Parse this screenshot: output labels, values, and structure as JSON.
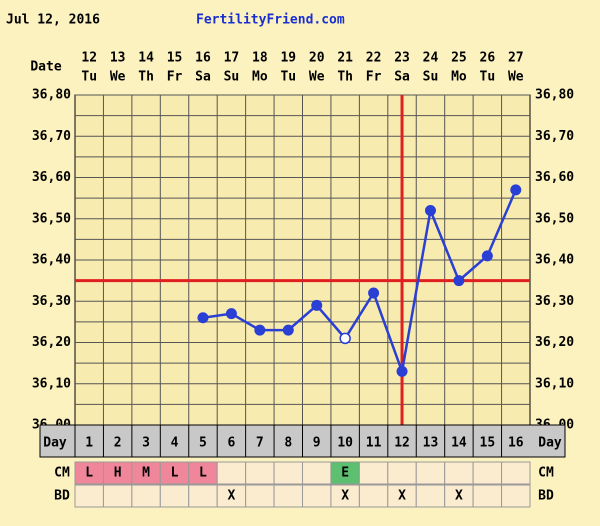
{
  "chart_data": {
    "type": "line",
    "date_label": "Jul 12, 2016",
    "site": "FertilityFriend.com",
    "date_row_label": "Date",
    "categories": [
      "12",
      "13",
      "14",
      "15",
      "16",
      "17",
      "18",
      "19",
      "20",
      "21",
      "22",
      "23",
      "24",
      "25",
      "26",
      "27"
    ],
    "weekdays": [
      "Tu",
      "We",
      "Th",
      "Fr",
      "Sa",
      "Su",
      "Mo",
      "Tu",
      "We",
      "Th",
      "Fr",
      "Sa",
      "Su",
      "Mo",
      "Tu",
      "We"
    ],
    "day_row_label": "Day",
    "days": [
      "1",
      "2",
      "3",
      "4",
      "5",
      "6",
      "7",
      "8",
      "9",
      "10",
      "11",
      "12",
      "13",
      "14",
      "15",
      "16"
    ],
    "series": [
      {
        "name": "Temperature",
        "color": "#2a3fd4",
        "values": [
          null,
          null,
          null,
          null,
          36.26,
          36.27,
          36.23,
          36.23,
          36.29,
          36.21,
          36.32,
          36.13,
          36.52,
          36.35,
          36.41,
          36.57
        ]
      }
    ],
    "open_marker_days": [
      "10"
    ],
    "ylim": [
      36.0,
      36.8
    ],
    "yticks": [
      {
        "value": 36.0,
        "label": "36,00"
      },
      {
        "value": 36.1,
        "label": "36,10"
      },
      {
        "value": 36.2,
        "label": "36,20"
      },
      {
        "value": 36.3,
        "label": "36,30"
      },
      {
        "value": 36.4,
        "label": "36,40"
      },
      {
        "value": 36.5,
        "label": "36,50"
      },
      {
        "value": 36.6,
        "label": "36,60"
      },
      {
        "value": 36.7,
        "label": "36,70"
      },
      {
        "value": 36.8,
        "label": "36,80"
      }
    ],
    "minor_yticks": [
      36.05,
      36.15,
      36.25,
      36.35,
      36.45,
      36.55,
      36.65,
      36.75
    ],
    "coverline": 36.35,
    "ovulation_day": "12",
    "marker_color": "#e02020",
    "cm_label": "CM",
    "cm": [
      "L",
      "H",
      "M",
      "L",
      "L",
      null,
      null,
      null,
      null,
      "E",
      null,
      null,
      null,
      null,
      null,
      null
    ],
    "cm_colors": {
      "L": "#f0869a",
      "H": "#f0869a",
      "M": "#f0869a",
      "E": "#5cc070"
    },
    "bd_label": "BD",
    "bd": [
      null,
      null,
      null,
      null,
      null,
      "X",
      null,
      null,
      null,
      "X",
      null,
      "X",
      null,
      "X",
      null,
      null
    ]
  }
}
